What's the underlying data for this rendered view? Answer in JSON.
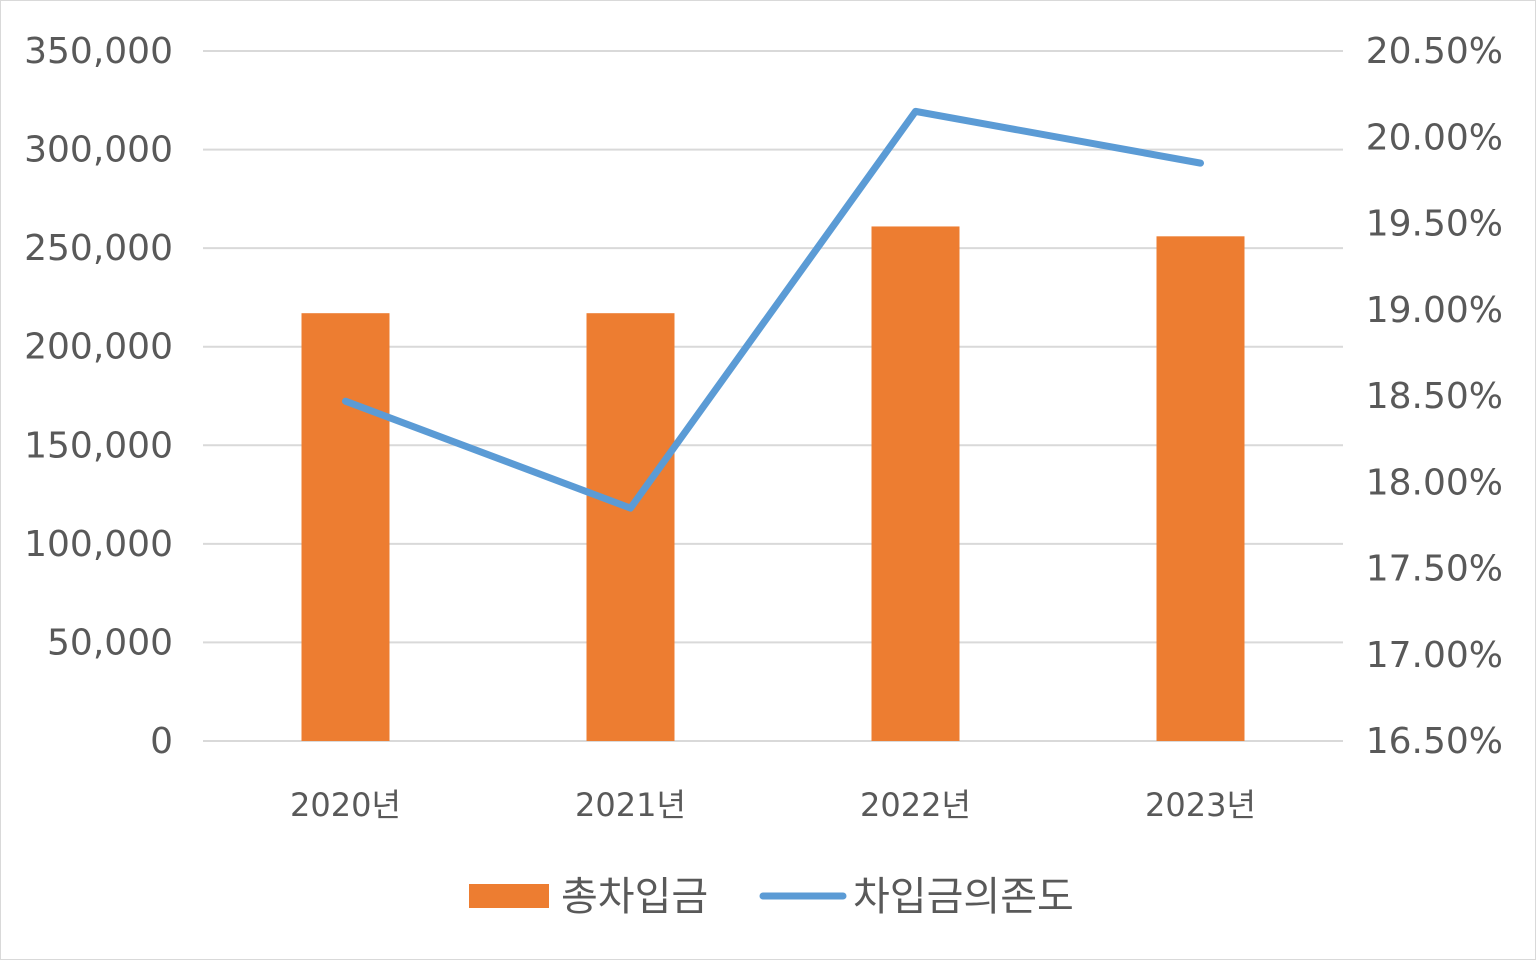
{
  "chart_data": {
    "type": "bar",
    "categories": [
      "2020년",
      "2021년",
      "2022년",
      "2023년"
    ],
    "series": [
      {
        "name": "총차입금",
        "type": "bar",
        "axis": "left",
        "color": "#ED7D31",
        "values": [
          217000,
          217000,
          261000,
          256000
        ]
      },
      {
        "name": "차입금의존도",
        "type": "line",
        "axis": "right",
        "color": "#5B9BD5",
        "values": [
          18.47,
          17.85,
          20.15,
          19.85
        ]
      }
    ],
    "y_left": {
      "min": 0,
      "max": 350000,
      "ticks": [
        "0",
        "50,000",
        "100,000",
        "150,000",
        "200,000",
        "250,000",
        "300,000",
        "350,000"
      ]
    },
    "y_right": {
      "min": 16.5,
      "max": 20.5,
      "ticks": [
        "16.50%",
        "17.00%",
        "17.50%",
        "18.00%",
        "18.50%",
        "19.00%",
        "19.50%",
        "20.00%",
        "20.50%"
      ]
    },
    "grid": true,
    "legend_position": "bottom"
  }
}
